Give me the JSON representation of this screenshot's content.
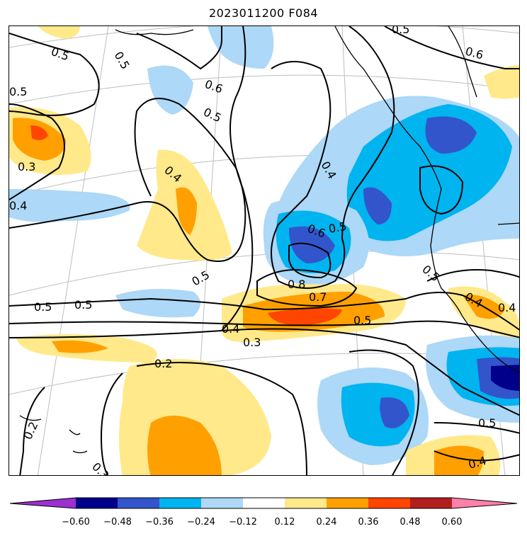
{
  "title": "2023011200 F084",
  "colorbar": {
    "ticks": [
      "−0.60",
      "−0.48",
      "−0.36",
      "−0.24",
      "−0.12",
      "0.12",
      "0.24",
      "0.36",
      "0.48",
      "0.60"
    ],
    "colors": [
      "#9b30d0",
      "#00008b",
      "#3355cc",
      "#00b4f0",
      "#add8f7",
      "#ffffff",
      "#ffe98a",
      "#ffa000",
      "#ff4500",
      "#b01e1e",
      "#ff80a8"
    ]
  },
  "contour_labels": [
    "0.5",
    "0.5",
    "0.5",
    "0.6",
    "0.5",
    "0.3",
    "0.4",
    "0.4",
    "0.4",
    "0.6",
    "0.5",
    "0.5",
    "0.8",
    "0.7",
    "0.5",
    "0.5",
    "0.5",
    "0.5",
    "0.4",
    "0.3",
    "0.5",
    "0.2",
    "0.2",
    "0.3",
    "0.5",
    "0.4",
    "0.4",
    "0.6",
    "0.4"
  ]
}
